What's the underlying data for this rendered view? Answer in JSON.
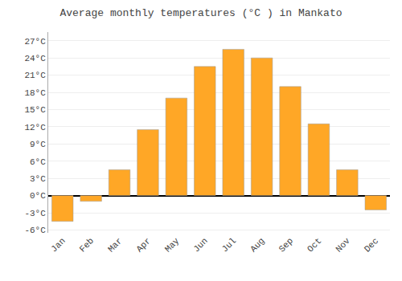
{
  "chart_data": {
    "type": "bar",
    "title": "Average monthly temperatures (°C ) in Mankato",
    "categories": [
      "Jan",
      "Feb",
      "Mar",
      "Apr",
      "May",
      "Jun",
      "Jul",
      "Aug",
      "Sep",
      "Oct",
      "Nov",
      "Dec"
    ],
    "values": [
      -4.5,
      -1.0,
      4.5,
      11.5,
      17.0,
      22.5,
      25.5,
      24.0,
      19.0,
      12.5,
      4.5,
      -2.5
    ],
    "color": "#FFA726",
    "ylim": [
      -6.5,
      28.5
    ],
    "yticks": [
      {
        "value": -6,
        "label": "-6°C"
      },
      {
        "value": -3,
        "label": "-3°C"
      },
      {
        "value": 0,
        "label": "0°C"
      },
      {
        "value": 3,
        "label": "3°C"
      },
      {
        "value": 6,
        "label": "6°C"
      },
      {
        "value": 9,
        "label": "9°C"
      },
      {
        "value": 12,
        "label": "12°C"
      },
      {
        "value": 15,
        "label": "15°C"
      },
      {
        "value": 18,
        "label": "18°C"
      },
      {
        "value": 21,
        "label": "21°C"
      },
      {
        "value": 24,
        "label": "24°C"
      },
      {
        "value": 27,
        "label": "27°C"
      }
    ],
    "grid": true
  }
}
